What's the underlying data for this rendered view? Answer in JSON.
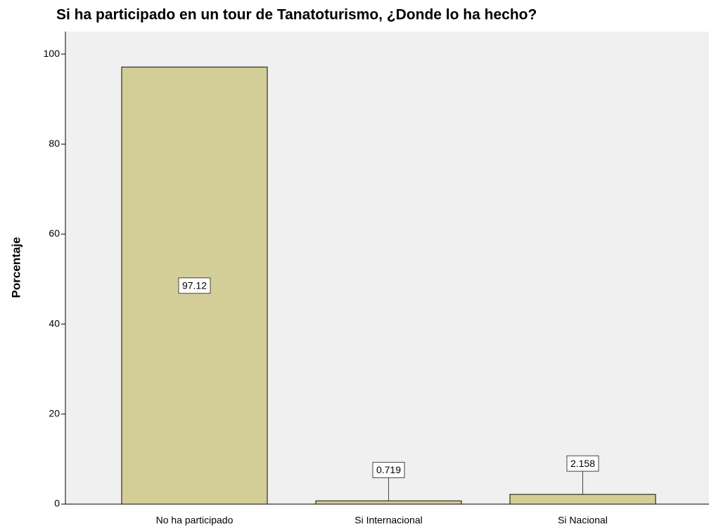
{
  "chart_data": {
    "type": "bar",
    "title": "Si ha participado en un tour de Tanatoturismo, ¿Donde lo ha hecho?",
    "y_label": "Porcentaje",
    "categories": [
      "No ha participado",
      "Si Internacional",
      "Si Nacional"
    ],
    "values": [
      97.12,
      0.719,
      2.158
    ],
    "color": "#d3ce97",
    "ylim": [
      0,
      105
    ],
    "yticks": [
      0,
      20,
      40,
      60,
      80,
      100
    ],
    "grid": false
  }
}
